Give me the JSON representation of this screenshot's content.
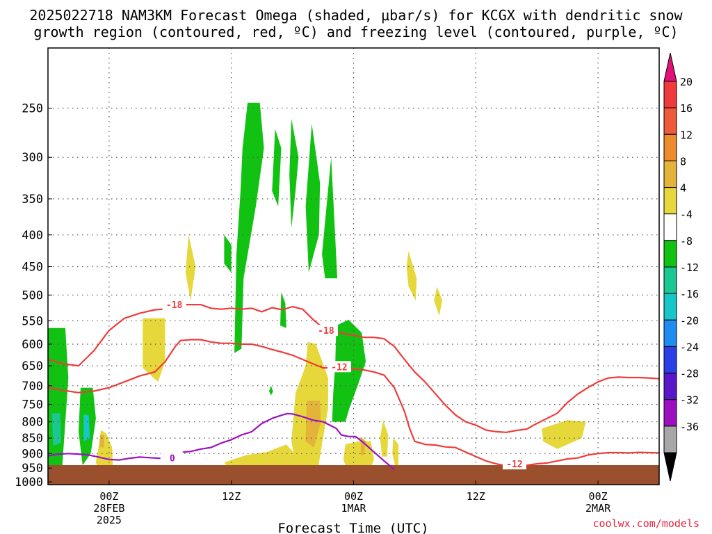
{
  "title_line1": "2025022718 NAM3KM Forecast Omega (shaded, μbar/s) for KCGX with dendritic snow",
  "title_line2": "growth region (contoured, red, ºC) and freezing level (contoured, purple, ºC)",
  "credit": "coolwx.com/models",
  "chart_data": {
    "type": "heatmap",
    "xlabel": "Forecast Time (UTC)",
    "ylabel": "",
    "x_range_hours": [
      -6,
      54
    ],
    "y_pressure_range_hPa": [
      1010,
      200
    ],
    "y_scale": "log-pressure",
    "grid": true,
    "x_ticks": [
      {
        "hour": 0,
        "lines": [
          "00Z",
          "28FEB",
          "2025"
        ]
      },
      {
        "hour": 12,
        "lines": [
          "12Z"
        ]
      },
      {
        "hour": 24,
        "lines": [
          "00Z",
          "1MAR"
        ]
      },
      {
        "hour": 36,
        "lines": [
          "12Z"
        ]
      },
      {
        "hour": 48,
        "lines": [
          "00Z",
          "2MAR"
        ]
      }
    ],
    "y_ticks": [
      250,
      300,
      350,
      400,
      450,
      500,
      550,
      600,
      650,
      700,
      750,
      800,
      850,
      900,
      950,
      1000
    ],
    "colorbar": {
      "labels": [
        "20",
        "16",
        "12",
        "8",
        "4",
        "-4",
        "-8",
        "-12",
        "-16",
        "-20",
        "-24",
        "-28",
        "-32",
        "-36"
      ],
      "top_arrow_color": "#e0117a",
      "bottom_arrow_color": "#000000",
      "bins": [
        {
          "color": "#ef3b3b"
        },
        {
          "color": "#ee5a3a"
        },
        {
          "color": "#ec8a2c"
        },
        {
          "color": "#e3b33a"
        },
        {
          "color": "#e6d83a"
        },
        {
          "color": "#ffffff"
        },
        {
          "color": "#12c212"
        },
        {
          "color": "#1bc792"
        },
        {
          "color": "#17c6c8"
        },
        {
          "color": "#1f8cf0"
        },
        {
          "color": "#2a3fe6"
        },
        {
          "color": "#5a17c9"
        },
        {
          "color": "#9c10c2"
        },
        {
          "color": "#a7a7a7"
        }
      ]
    },
    "colors": {
      "ground": "#9a4f2d",
      "dgz_contour": "#ef3b3b",
      "freezing_level": "#9c10c2",
      "green": "#12c212",
      "yellow": "#e6d83a",
      "orange": "#e3b33a",
      "teal": "#1bc792",
      "cyan": "#17c6c8"
    },
    "contour_labels": [
      {
        "text": "-18",
        "hour": 6.4,
        "p": 518,
        "series": "dgz"
      },
      {
        "text": "-18",
        "hour": 21.3,
        "p": 570,
        "series": "dgz"
      },
      {
        "text": "-12",
        "hour": 22.6,
        "p": 652,
        "series": "dgz"
      },
      {
        "text": "-12",
        "hour": 39.8,
        "p": 935,
        "series": "dgz"
      },
      {
        "text": "0",
        "hour": 6.2,
        "p": 915,
        "series": "frz"
      }
    ],
    "contours": [
      {
        "name": "m18",
        "series": "dgz",
        "points": [
          [
            -6,
            635
          ],
          [
            -4.5,
            645
          ],
          [
            -3,
            650
          ],
          [
            -1.5,
            615
          ],
          [
            0,
            570
          ],
          [
            1.5,
            545
          ],
          [
            3,
            535
          ],
          [
            4.5,
            528
          ],
          [
            6.0,
            526
          ],
          [
            7.5,
            518
          ],
          [
            9,
            518
          ],
          [
            10,
            525
          ],
          [
            11,
            527
          ],
          [
            12,
            525
          ],
          [
            13,
            527
          ],
          [
            14,
            525
          ],
          [
            15,
            532
          ],
          [
            16,
            524
          ],
          [
            17,
            528
          ],
          [
            18,
            522
          ],
          [
            19,
            527
          ],
          [
            20,
            547
          ],
          [
            21,
            565
          ],
          [
            22,
            570
          ],
          [
            23,
            577
          ],
          [
            24,
            580
          ],
          [
            25,
            585
          ],
          [
            26,
            585
          ],
          [
            27,
            588
          ],
          [
            28,
            605
          ],
          [
            29,
            635
          ],
          [
            30,
            665
          ],
          [
            31,
            690
          ],
          [
            32,
            720
          ],
          [
            33,
            752
          ],
          [
            34,
            780
          ],
          [
            35,
            800
          ],
          [
            36,
            810
          ],
          [
            37,
            825
          ],
          [
            38,
            830
          ],
          [
            39,
            832
          ],
          [
            40,
            826
          ],
          [
            41,
            822
          ],
          [
            42,
            805
          ],
          [
            43,
            790
          ],
          [
            44,
            775
          ],
          [
            45,
            745
          ],
          [
            46,
            722
          ],
          [
            47,
            705
          ],
          [
            48,
            690
          ],
          [
            49,
            680
          ],
          [
            50,
            678
          ],
          [
            51,
            679
          ],
          [
            52,
            679
          ],
          [
            53,
            680
          ],
          [
            54,
            682
          ]
        ]
      },
      {
        "name": "m12",
        "series": "dgz",
        "points": [
          [
            -6,
            705
          ],
          [
            -4.5,
            712
          ],
          [
            -3,
            718
          ],
          [
            -1.5,
            714
          ],
          [
            0,
            705
          ],
          [
            1.5,
            690
          ],
          [
            3,
            675
          ],
          [
            4.5,
            665
          ],
          [
            5.5,
            640
          ],
          [
            6.5,
            605
          ],
          [
            7,
            592
          ],
          [
            8,
            590
          ],
          [
            9,
            590
          ],
          [
            10,
            595
          ],
          [
            11,
            598
          ],
          [
            12,
            598
          ],
          [
            13,
            600
          ],
          [
            14,
            600
          ],
          [
            15,
            605
          ],
          [
            16,
            612
          ],
          [
            17,
            618
          ],
          [
            18,
            625
          ],
          [
            19,
            635
          ],
          [
            20,
            645
          ],
          [
            21,
            655
          ],
          [
            22,
            655
          ],
          [
            23,
            657
          ],
          [
            24,
            658
          ],
          [
            25,
            660
          ],
          [
            26,
            665
          ],
          [
            27,
            673
          ],
          [
            28,
            705
          ],
          [
            29,
            770
          ],
          [
            29.5,
            820
          ],
          [
            30,
            860
          ],
          [
            31,
            870
          ],
          [
            32,
            872
          ],
          [
            33,
            878
          ],
          [
            34,
            880
          ],
          [
            35,
            895
          ],
          [
            36,
            910
          ],
          [
            37,
            925
          ],
          [
            38,
            935
          ],
          [
            39,
            942
          ],
          [
            40,
            945
          ],
          [
            41,
            940
          ],
          [
            42,
            935
          ],
          [
            43,
            932
          ],
          [
            44,
            925
          ],
          [
            45,
            918
          ],
          [
            46,
            915
          ],
          [
            47,
            905
          ],
          [
            48,
            900
          ],
          [
            49,
            897
          ],
          [
            50,
            897
          ],
          [
            51,
            898
          ],
          [
            52,
            896
          ],
          [
            53,
            897
          ],
          [
            54,
            898
          ]
        ]
      },
      {
        "name": "frz0",
        "series": "frz",
        "points": [
          [
            -6,
            908
          ],
          [
            -5,
            902
          ],
          [
            -4,
            900
          ],
          [
            -3,
            902
          ],
          [
            -2,
            905
          ],
          [
            -1,
            912
          ],
          [
            0,
            920
          ],
          [
            1,
            922
          ],
          [
            2,
            916
          ],
          [
            3,
            912
          ],
          [
            4,
            914
          ],
          [
            5,
            916
          ],
          [
            6,
            917
          ],
          [
            7,
            915
          ],
          [
            7.3,
            895
          ],
          [
            8,
            893
          ],
          [
            9,
            885
          ],
          [
            10,
            880
          ],
          [
            11,
            866
          ],
          [
            12,
            855
          ],
          [
            13,
            840
          ],
          [
            14,
            830
          ],
          [
            15,
            805
          ],
          [
            16,
            790
          ],
          [
            17,
            780
          ],
          [
            17.5,
            776
          ],
          [
            18,
            777
          ],
          [
            19,
            785
          ],
          [
            20,
            795
          ],
          [
            21,
            800
          ],
          [
            21.8,
            812
          ],
          [
            22.3,
            820
          ],
          [
            22.8,
            840
          ],
          [
            23.5,
            845
          ],
          [
            24.2,
            845
          ],
          [
            25,
            865
          ],
          [
            26,
            895
          ],
          [
            27,
            925
          ],
          [
            28,
            955
          ]
        ]
      }
    ]
  }
}
